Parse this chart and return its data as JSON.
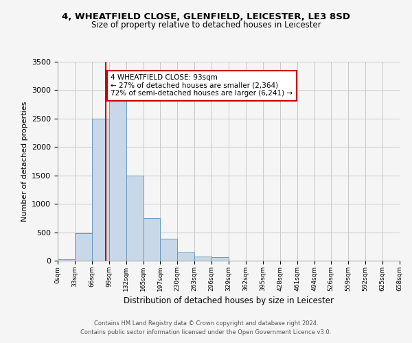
{
  "title1": "4, WHEATFIELD CLOSE, GLENFIELD, LEICESTER, LE3 8SD",
  "title2": "Size of property relative to detached houses in Leicester",
  "xlabel": "Distribution of detached houses by size in Leicester",
  "ylabel": "Number of detached properties",
  "bin_edges": [
    0,
    33,
    66,
    99,
    132,
    165,
    197,
    230,
    263,
    296,
    329,
    362,
    395,
    428,
    461,
    494,
    526,
    559,
    592,
    625,
    658
  ],
  "bar_heights": [
    20,
    480,
    2500,
    2820,
    1500,
    750,
    390,
    140,
    70,
    55,
    0,
    0,
    0,
    0,
    0,
    0,
    0,
    0,
    0,
    0
  ],
  "bar_color": "#c8d8e8",
  "bar_edge_color": "#6699bb",
  "vline_x": 93,
  "vline_color": "#cc0000",
  "annotation_text": "4 WHEATFIELD CLOSE: 93sqm\n← 27% of detached houses are smaller (2,364)\n72% of semi-detached houses are larger (6,241) →",
  "annotation_box_color": "#ffffff",
  "annotation_box_edge_color": "#cc0000",
  "ylim": [
    0,
    3500
  ],
  "yticks": [
    0,
    500,
    1000,
    1500,
    2000,
    2500,
    3000,
    3500
  ],
  "xtick_labels": [
    "0sqm",
    "33sqm",
    "66sqm",
    "99sqm",
    "132sqm",
    "165sqm",
    "197sqm",
    "230sqm",
    "263sqm",
    "296sqm",
    "329sqm",
    "362sqm",
    "395sqm",
    "428sqm",
    "461sqm",
    "494sqm",
    "526sqm",
    "559sqm",
    "592sqm",
    "625sqm",
    "658sqm"
  ],
  "footer_line1": "Contains HM Land Registry data © Crown copyright and database right 2024.",
  "footer_line2": "Contains public sector information licensed under the Open Government Licence v3.0.",
  "bg_color": "#f5f5f5",
  "grid_color": "#c8c8c8"
}
